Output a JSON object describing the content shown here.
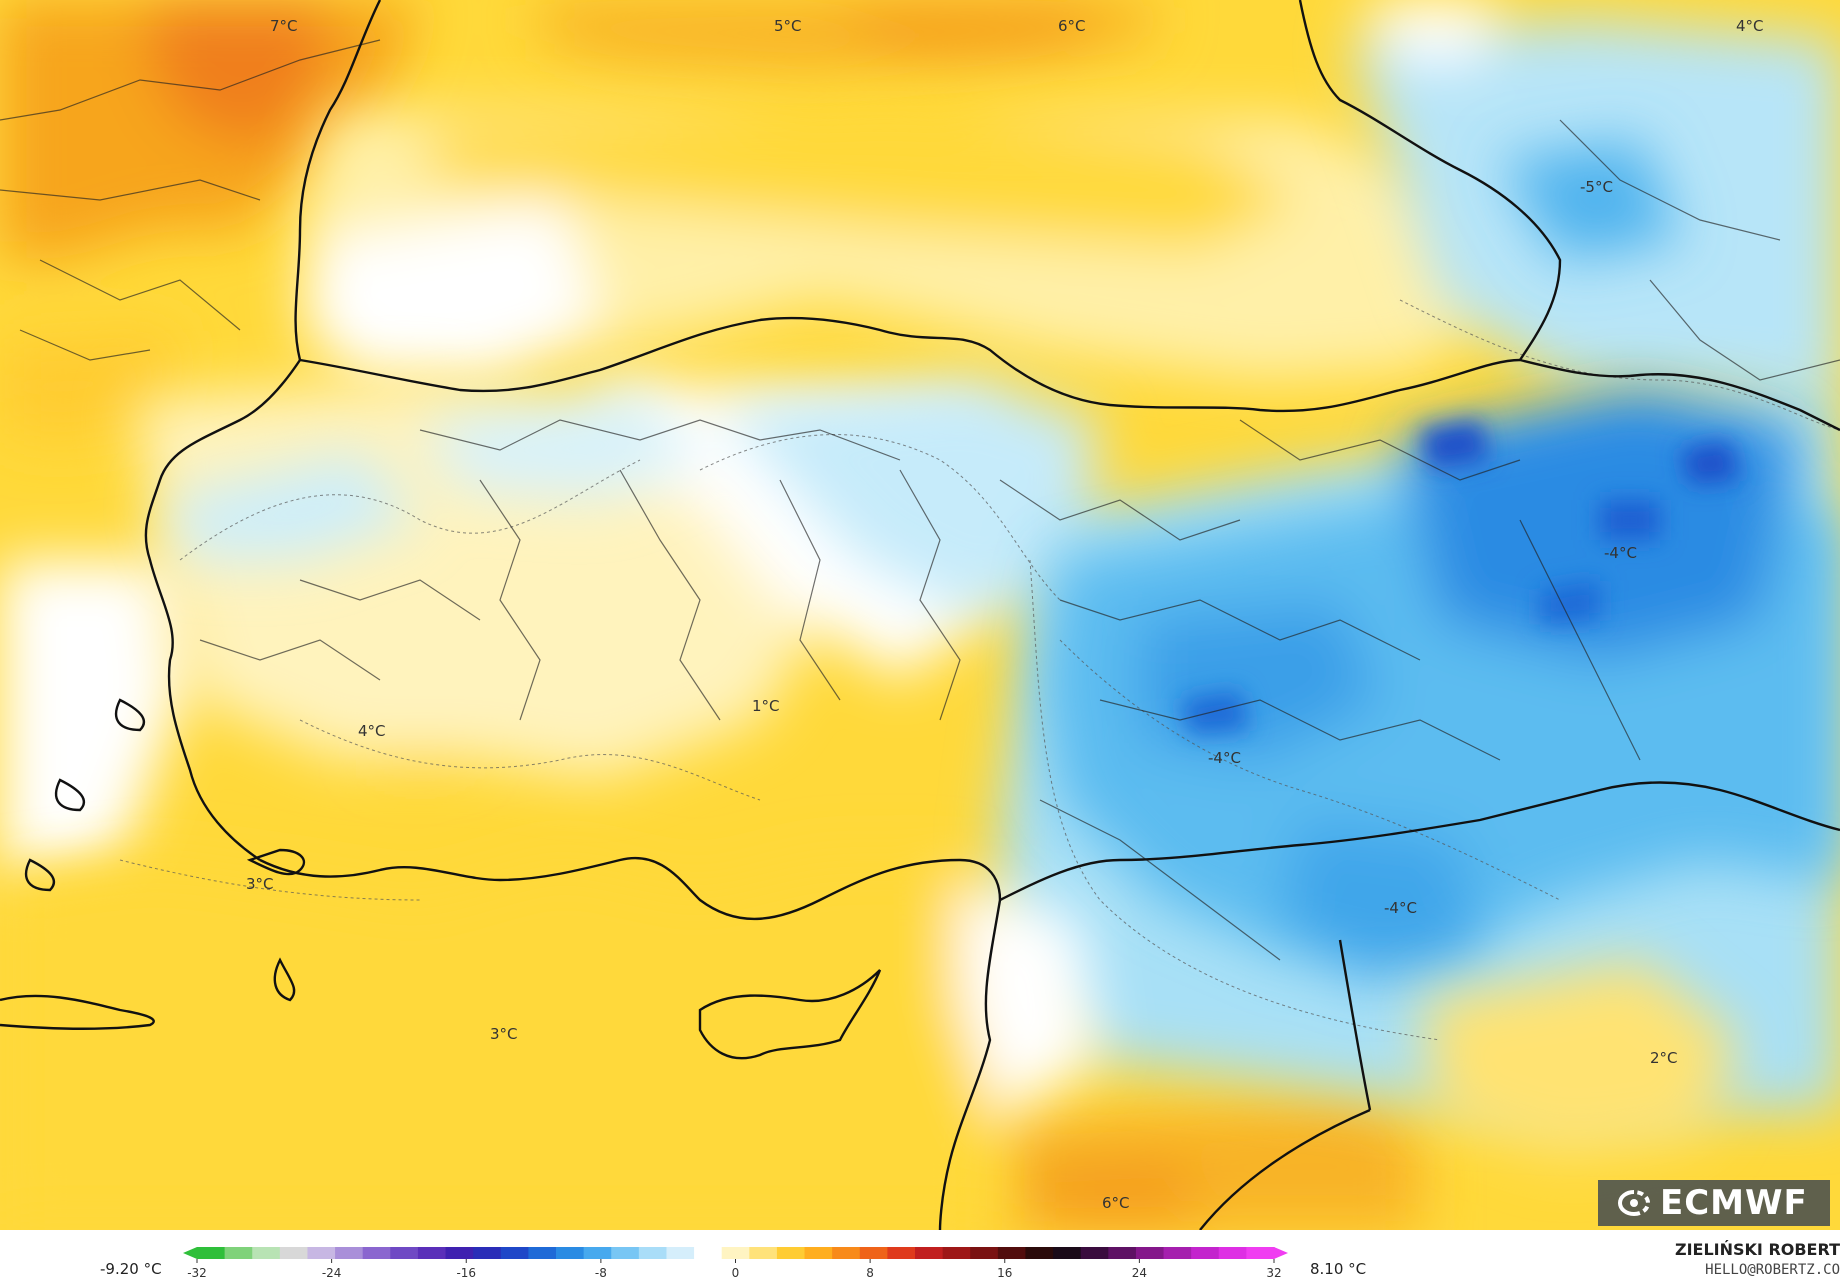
{
  "map": {
    "temperature_labels": [
      {
        "text": "7°C"
      },
      {
        "text": "5°C"
      },
      {
        "text": "6°C"
      },
      {
        "text": "4°C"
      },
      {
        "text": "-5°C"
      },
      {
        "text": "-4°C"
      },
      {
        "text": "1°C"
      },
      {
        "text": "4°C"
      },
      {
        "text": "-4°C"
      },
      {
        "text": "3°C"
      },
      {
        "text": "-4°C"
      },
      {
        "text": "3°C"
      },
      {
        "text": "2°C"
      },
      {
        "text": "6°C"
      }
    ],
    "colors": {
      "warm_orange": "#f7a51f",
      "warm_yellow": "#ffd93a",
      "pale_yellow": "#fff2b5",
      "neutral_white": "#ffffff",
      "pale_blue": "#d6f1fb",
      "light_blue": "#a8e0f6",
      "mid_blue": "#3fb1ee",
      "deep_blue": "#1b6ad6",
      "border": "#111111"
    }
  },
  "legend": {
    "min_label": "-9.20 °C",
    "max_label": "8.10 °C",
    "ticks": [
      "-32",
      "-24",
      "-16",
      "-8",
      "0",
      "8",
      "16",
      "24",
      "32"
    ],
    "range": [
      -32,
      32
    ],
    "colors": [
      "#2fbf3a",
      "#7fd27a",
      "#b8e3b4",
      "#d8d8d8",
      "#c7b7e3",
      "#a98fd9",
      "#8a66cf",
      "#6f49c4",
      "#5a2fb9",
      "#3f21b0",
      "#2a2db8",
      "#1f47c8",
      "#1f6ad7",
      "#2a8be3",
      "#47a9ee",
      "#78c6f4",
      "#a9ddf8",
      "#d5eefb",
      "#ffffff",
      "#fff4c2",
      "#ffe27a",
      "#ffcc33",
      "#ffae1f",
      "#f88a1a",
      "#ef6319",
      "#df3a1c",
      "#c11f1f",
      "#9e1717",
      "#7a1212",
      "#520d0d",
      "#2b0a0a",
      "#1a0a18",
      "#3a0c3e",
      "#5e1164",
      "#84178a",
      "#a51fae",
      "#c324cd",
      "#de2fe4",
      "#f03df1"
    ]
  },
  "credit": {
    "name": "ZIELIŃSKI ROBERT",
    "email": "HELLO@ROBERTZ.CO"
  },
  "logo": {
    "text": "ECMWF",
    "icon": "ecmwf-logo-icon"
  }
}
